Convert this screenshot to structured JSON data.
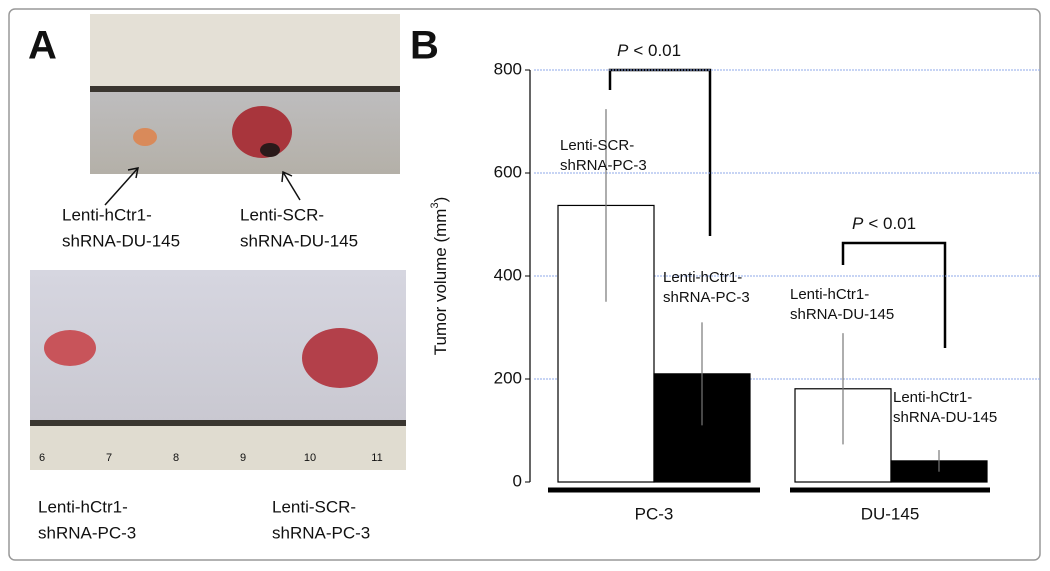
{
  "panel_a": {
    "letter": "A",
    "top_labels": [
      [
        "Lenti-hCtr1-",
        "shRNA-DU-145"
      ],
      [
        "Lenti-SCR-",
        "shRNA-DU-145"
      ]
    ],
    "bottom_labels": [
      [
        "Lenti-hCtr1-",
        "shRNA-PC-3"
      ],
      [
        "Lenti-SCR-",
        "shRNA-PC-3"
      ]
    ],
    "ruler_numbers": [
      "6",
      "7",
      "8",
      "9",
      "10",
      "11"
    ]
  },
  "chart_data": {
    "type": "bar",
    "letter": "B",
    "ylabel": [
      "Tumor volume (mm",
      "3",
      ")"
    ],
    "categories": [
      "PC-3",
      "DU-145"
    ],
    "series": [
      {
        "color": "#ffffff",
        "values": [
          537,
          181
        ],
        "errors": [
          187,
          108
        ],
        "labels": [
          [
            "Lenti-SCR-",
            "shRNA-PC-3"
          ],
          [
            "Lenti-hCtr1-",
            "shRNA-DU-145"
          ]
        ]
      },
      {
        "color": "#000000",
        "values": [
          210,
          41
        ],
        "errors": [
          100,
          21
        ],
        "labels": [
          [
            "Lenti-hCtr1-",
            "shRNA-PC-3"
          ],
          [
            "Lenti-hCtr1-",
            "shRNA-DU-145"
          ]
        ]
      }
    ],
    "annotations": [
      {
        "symbol": "P",
        "text": "< 0.01"
      },
      {
        "symbol": "P",
        "text": "< 0.01"
      }
    ],
    "ylim": [
      0,
      800
    ],
    "yticks": [
      0,
      200,
      400,
      600,
      800
    ],
    "grid": true,
    "grid_color": "#8fa8e8"
  }
}
